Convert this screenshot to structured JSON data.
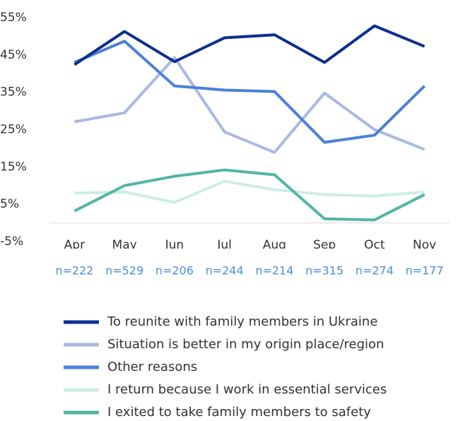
{
  "chart_data": {
    "type": "line",
    "categories": [
      "Apr",
      "May",
      "Jun",
      "Jul",
      "Aug",
      "Sep",
      "Oct",
      "Nov"
    ],
    "n_labels": [
      "n=222",
      "n=529",
      "n=206",
      "n=244",
      "n=214",
      "n=315",
      "n=274",
      "n=177"
    ],
    "series": [
      {
        "name": "To reunite with family members in Ukraine",
        "color": "#0b2f8e",
        "values": [
          42.4,
          51.3,
          43.2,
          49.6,
          50.4,
          43,
          52.8,
          47.3
        ]
      },
      {
        "name": "Situation is better in my origin place/region",
        "color": "#aab9e1",
        "values": [
          27.1,
          29.5,
          44.3,
          24.4,
          18.9,
          34.8,
          25,
          19.7
        ]
      },
      {
        "name": "Other reasons",
        "color": "#4c80d9",
        "values": [
          43,
          48.7,
          36.7,
          35.6,
          35.2,
          21.6,
          23.5,
          36.7
        ]
      },
      {
        "name": "I return because I work in essential services",
        "color": "#cbeee6",
        "values": [
          8,
          8.3,
          5.5,
          11.2,
          8.9,
          7.6,
          7.2,
          8.3
        ]
      },
      {
        "name": "I exited to take family members to safety",
        "color": "#52b5a5",
        "values": [
          3.2,
          10,
          12.5,
          14.2,
          12.9,
          1.1,
          0.8,
          7.6
        ]
      }
    ],
    "ylim": [
      -5,
      55
    ],
    "yticks": [
      {
        "value": -5,
        "label": "-5%"
      },
      {
        "value": 5,
        "label": "5%"
      },
      {
        "value": 15,
        "label": "15%"
      },
      {
        "value": 25,
        "label": "25%"
      },
      {
        "value": 35,
        "label": "35%"
      },
      {
        "value": 45,
        "label": "45%"
      },
      {
        "value": 55,
        "label": "55%"
      }
    ],
    "legend": "bottom"
  }
}
